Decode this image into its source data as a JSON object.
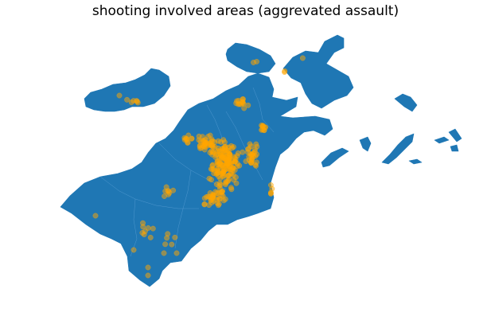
{
  "title": "shooting involved areas (aggrevated assault)",
  "colors": {
    "land": "#1f77b4",
    "points": "#ffa500",
    "background": "#ffffff"
  },
  "chart_data": {
    "type": "scatter",
    "title": "shooting involved areas (aggrevated assault)",
    "grid": false,
    "axes_visible": false,
    "series": [
      {
        "marker_color": "#ffa500",
        "marker_alpha": 0.5
      }
    ]
  }
}
